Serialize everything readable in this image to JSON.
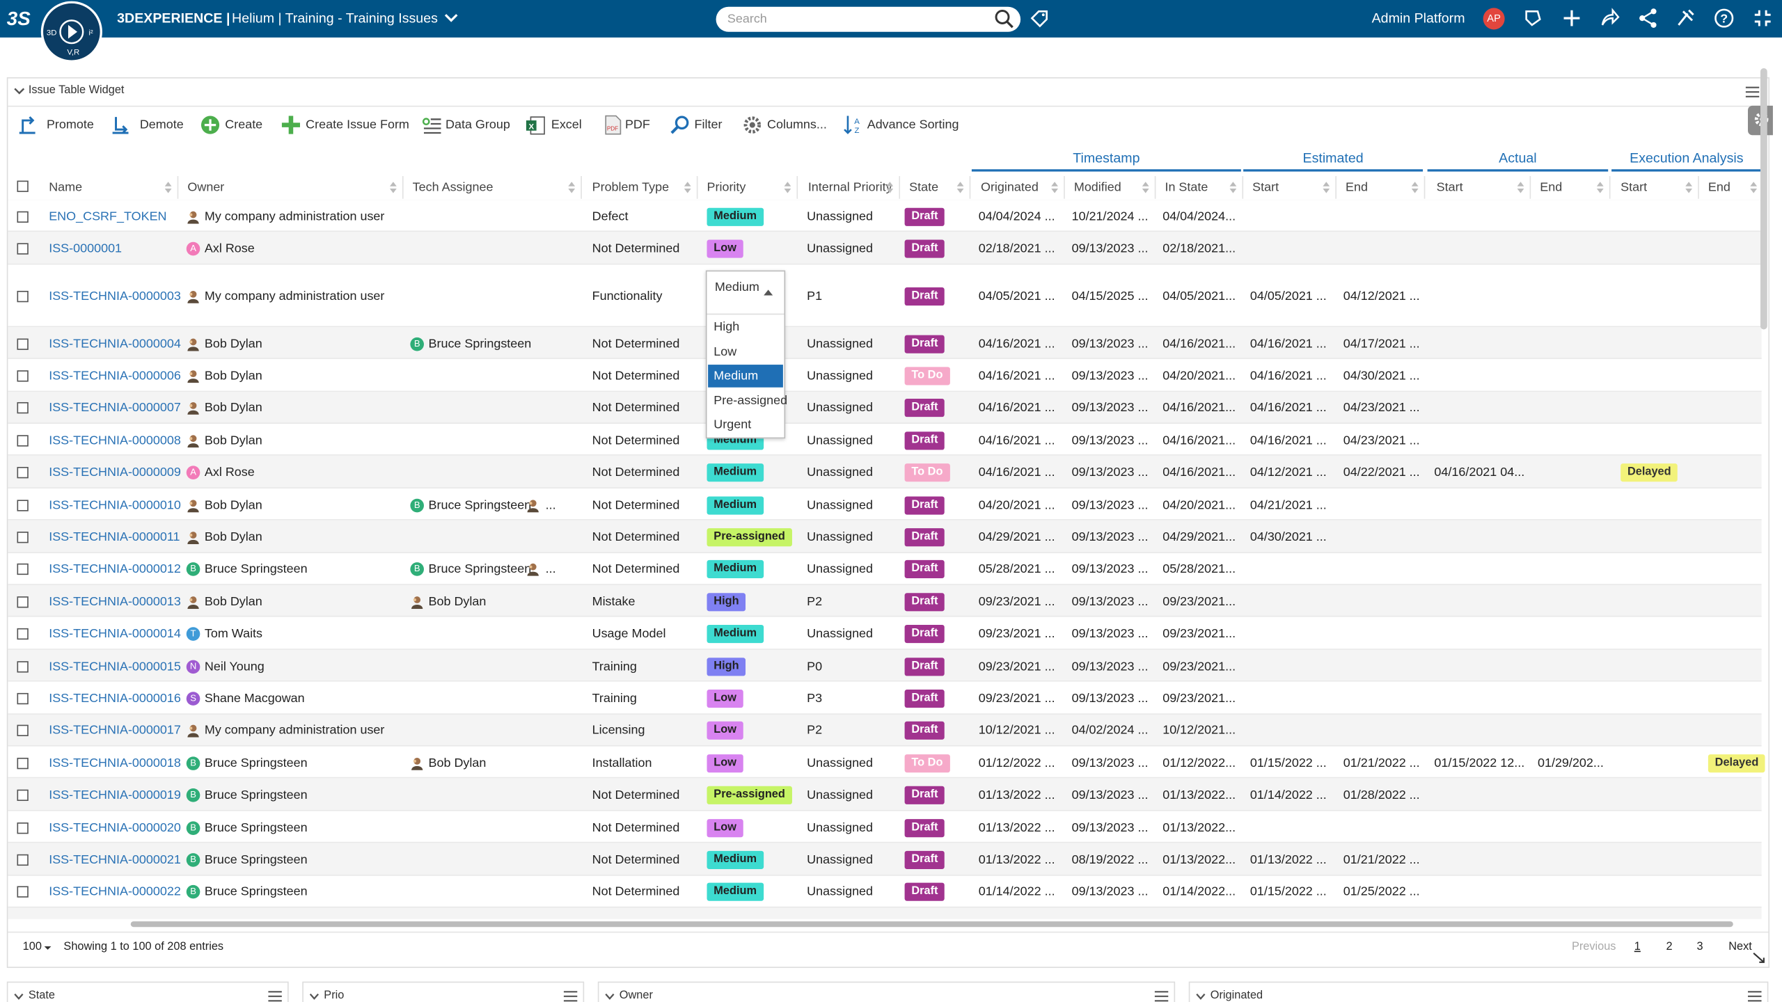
{
  "header": {
    "brand": "3DEXPERIENCE |",
    "breadcrumb": "Helium | Training - Training Issues",
    "search": "Search",
    "user": "Admin Platform",
    "avatar": "AP"
  },
  "widget": {
    "title": "Issue Table Widget",
    "toolbar": [
      "Promote",
      "Demote",
      "Create",
      "Create Issue Form",
      "Data Group",
      "Excel",
      "PDF",
      "Filter",
      "Columns...",
      "Advance Sorting"
    ],
    "column_groups": [
      "Timestamp",
      "Estimated",
      "Actual",
      "Execution Analysis"
    ],
    "columns": [
      "Name",
      "Owner",
      "Tech Assignee",
      "Problem Type",
      "Priority",
      "Internal Priority",
      "State",
      "Originated",
      "Modified",
      "In State",
      "Start",
      "End",
      "Start",
      "End",
      "Start",
      "End"
    ],
    "rows": [
      {
        "name": "ENO_CSRF_TOKEN",
        "owner": {
          "initial": null,
          "name": "My company administration user"
        },
        "tech": null,
        "problem": "Defect",
        "priority": "Medium",
        "internal": "Unassigned",
        "state": "Draft",
        "dates": [
          "04/04/2024 ...",
          "10/21/2024 ...",
          "04/04/2024...",
          null,
          null,
          null,
          null,
          null,
          null
        ]
      },
      {
        "name": "ISS-0000001",
        "owner": {
          "initial": "A",
          "name": "Axl Rose"
        },
        "tech": null,
        "problem": "Not Determined",
        "priority": "Low",
        "internal": "Unassigned",
        "state": "Draft",
        "dates": [
          "02/18/2021 ...",
          "09/13/2023 ...",
          "02/18/2021...",
          null,
          null,
          null,
          null,
          null,
          null
        ]
      },
      {
        "name": "ISS-TECHNIA-0000003",
        "owner": {
          "initial": null,
          "name": "My company administration user"
        },
        "tech": null,
        "problem": "Functionality",
        "priority": null,
        "internal": "P1",
        "state": "Draft",
        "dates": [
          "04/05/2021 ...",
          "04/15/2025 ...",
          "04/05/2021...",
          "04/05/2021 ...",
          "04/12/2021 ...",
          null,
          null,
          null,
          null
        ]
      },
      {
        "name": "ISS-TECHNIA-0000004",
        "owner": {
          "initial": null,
          "name": "Bob Dylan"
        },
        "tech": {
          "initial": "B",
          "name": "Bruce Springsteen",
          "more": null
        },
        "problem": "Not Determined",
        "priority": null,
        "internal": "Unassigned",
        "state": "Draft",
        "dates": [
          "04/16/2021 ...",
          "09/13/2023 ...",
          "04/16/2021...",
          "04/16/2021 ...",
          "04/17/2021 ...",
          null,
          null,
          null,
          null
        ]
      },
      {
        "name": "ISS-TECHNIA-0000006",
        "owner": {
          "initial": null,
          "name": "Bob Dylan"
        },
        "tech": null,
        "problem": "Not Determined",
        "priority": null,
        "internal": "Unassigned",
        "state": "To Do",
        "dates": [
          "04/16/2021 ...",
          "09/13/2023 ...",
          "04/20/2021...",
          "04/16/2021 ...",
          "04/30/2021 ...",
          null,
          null,
          null,
          null
        ]
      },
      {
        "name": "ISS-TECHNIA-0000007",
        "owner": {
          "initial": null,
          "name": "Bob Dylan"
        },
        "tech": null,
        "problem": "Not Determined",
        "priority": null,
        "internal": "Unassigned",
        "state": "Draft",
        "dates": [
          "04/16/2021 ...",
          "09/13/2023 ...",
          "04/16/2021...",
          "04/16/2021 ...",
          "04/23/2021 ...",
          null,
          null,
          null,
          null
        ]
      },
      {
        "name": "ISS-TECHNIA-0000008",
        "owner": {
          "initial": null,
          "name": "Bob Dylan"
        },
        "tech": null,
        "problem": "Not Determined",
        "priority": "Medium",
        "internal": "Unassigned",
        "state": "Draft",
        "dates": [
          "04/16/2021 ...",
          "09/13/2023 ...",
          "04/16/2021...",
          "04/16/2021 ...",
          "04/23/2021 ...",
          null,
          null,
          null,
          null
        ]
      },
      {
        "name": "ISS-TECHNIA-0000009",
        "owner": {
          "initial": "A",
          "name": "Axl Rose"
        },
        "tech": null,
        "problem": "Not Determined",
        "priority": "Medium",
        "internal": "Unassigned",
        "state": "To Do",
        "dates": [
          "04/16/2021 ...",
          "09/13/2023 ...",
          "04/16/2021...",
          "04/12/2021 ...",
          "04/22/2021 ...",
          "04/16/2021 04...",
          null,
          "Delayed",
          null
        ]
      },
      {
        "name": "ISS-TECHNIA-0000010",
        "owner": {
          "initial": null,
          "name": "Bob Dylan"
        },
        "tech": {
          "initial": "B",
          "name": "Bruce Springsteen",
          "more": "..."
        },
        "problem": "Not Determined",
        "priority": "Medium",
        "internal": "Unassigned",
        "state": "Draft",
        "dates": [
          "04/20/2021 ...",
          "09/13/2023 ...",
          "04/20/2021...",
          "04/21/2021 ...",
          null,
          null,
          null,
          null,
          null
        ]
      },
      {
        "name": "ISS-TECHNIA-0000011",
        "owner": {
          "initial": null,
          "name": "Bob Dylan"
        },
        "tech": null,
        "problem": "Not Determined",
        "priority": "Pre-assigned",
        "internal": "Unassigned",
        "state": "Draft",
        "dates": [
          "04/29/2021 ...",
          "09/13/2023 ...",
          "04/29/2021...",
          "04/30/2021 ...",
          null,
          null,
          null,
          null,
          null
        ]
      },
      {
        "name": "ISS-TECHNIA-0000012",
        "owner": {
          "initial": "B",
          "name": "Bruce Springsteen"
        },
        "tech": {
          "initial": "B",
          "name": "Bruce Springsteen",
          "more": "..."
        },
        "problem": "Not Determined",
        "priority": "Medium",
        "internal": "Unassigned",
        "state": "Draft",
        "dates": [
          "05/28/2021 ...",
          "09/13/2023 ...",
          "05/28/2021...",
          null,
          null,
          null,
          null,
          null,
          null
        ]
      },
      {
        "name": "ISS-TECHNIA-0000013",
        "owner": {
          "initial": null,
          "name": "Bob Dylan"
        },
        "tech": {
          "initial": null,
          "name": "Bob Dylan",
          "more": null
        },
        "problem": "Mistake",
        "priority": "High",
        "internal": "P2",
        "state": "Draft",
        "dates": [
          "09/23/2021 ...",
          "09/13/2023 ...",
          "09/23/2021...",
          null,
          null,
          null,
          null,
          null,
          null
        ]
      },
      {
        "name": "ISS-TECHNIA-0000014",
        "owner": {
          "initial": "T",
          "name": "Tom Waits"
        },
        "tech": null,
        "problem": "Usage Model",
        "priority": "Medium",
        "internal": "Unassigned",
        "state": "Draft",
        "dates": [
          "09/23/2021 ...",
          "09/13/2023 ...",
          "09/23/2021...",
          null,
          null,
          null,
          null,
          null,
          null
        ]
      },
      {
        "name": "ISS-TECHNIA-0000015",
        "owner": {
          "initial": "N",
          "name": "Neil Young"
        },
        "tech": null,
        "problem": "Training",
        "priority": "High",
        "internal": "P0",
        "state": "Draft",
        "dates": [
          "09/23/2021 ...",
          "09/13/2023 ...",
          "09/23/2021...",
          null,
          null,
          null,
          null,
          null,
          null
        ]
      },
      {
        "name": "ISS-TECHNIA-0000016",
        "owner": {
          "initial": "S",
          "name": "Shane Macgowan"
        },
        "tech": null,
        "problem": "Training",
        "priority": "Low",
        "internal": "P3",
        "state": "Draft",
        "dates": [
          "09/23/2021 ...",
          "09/13/2023 ...",
          "09/23/2021...",
          null,
          null,
          null,
          null,
          null,
          null
        ]
      },
      {
        "name": "ISS-TECHNIA-0000017",
        "owner": {
          "initial": null,
          "name": "My company administration user"
        },
        "tech": null,
        "problem": "Licensing",
        "priority": "Low",
        "internal": "P2",
        "state": "Draft",
        "dates": [
          "10/12/2021 ...",
          "04/02/2024 ...",
          "10/12/2021...",
          null,
          null,
          null,
          null,
          null,
          null
        ]
      },
      {
        "name": "ISS-TECHNIA-0000018",
        "owner": {
          "initial": "B",
          "name": "Bruce Springsteen"
        },
        "tech": {
          "initial": null,
          "name": "Bob Dylan",
          "more": null
        },
        "problem": "Installation",
        "priority": "Low",
        "internal": "Unassigned",
        "state": "To Do",
        "dates": [
          "01/12/2022 ...",
          "09/13/2023 ...",
          "01/12/2022...",
          "01/15/2022 ...",
          "01/21/2022 ...",
          "01/15/2022 12...",
          "01/29/202...",
          null,
          "Delayed"
        ]
      },
      {
        "name": "ISS-TECHNIA-0000019",
        "owner": {
          "initial": "B",
          "name": "Bruce Springsteen"
        },
        "tech": null,
        "problem": "Not Determined",
        "priority": "Pre-assigned",
        "internal": "Unassigned",
        "state": "Draft",
        "dates": [
          "01/13/2022 ...",
          "09/13/2023 ...",
          "01/13/2022...",
          "01/14/2022 ...",
          "01/28/2022 ...",
          null,
          null,
          null,
          null
        ]
      },
      {
        "name": "ISS-TECHNIA-0000020",
        "owner": {
          "initial": "B",
          "name": "Bruce Springsteen"
        },
        "tech": null,
        "problem": "Not Determined",
        "priority": "Low",
        "internal": "Unassigned",
        "state": "Draft",
        "dates": [
          "01/13/2022 ...",
          "09/13/2023 ...",
          "01/13/2022...",
          null,
          null,
          null,
          null,
          null,
          null
        ]
      },
      {
        "name": "ISS-TECHNIA-0000021",
        "owner": {
          "initial": "B",
          "name": "Bruce Springsteen"
        },
        "tech": null,
        "problem": "Not Determined",
        "priority": "Medium",
        "internal": "Unassigned",
        "state": "Draft",
        "dates": [
          "01/13/2022 ...",
          "08/19/2022 ...",
          "01/13/2022...",
          "01/13/2022 ...",
          "01/21/2022 ...",
          null,
          null,
          null,
          null
        ]
      },
      {
        "name": "ISS-TECHNIA-0000022",
        "owner": {
          "initial": "B",
          "name": "Bruce Springsteen"
        },
        "tech": null,
        "problem": "Not Determined",
        "priority": "Medium",
        "internal": "Unassigned",
        "state": "Draft",
        "dates": [
          "01/14/2022 ...",
          "09/13/2023 ...",
          "01/14/2022...",
          "01/15/2022 ...",
          "01/25/2022 ...",
          null,
          null,
          null,
          null
        ]
      }
    ],
    "priority_dropdown": {
      "row": 2,
      "selected": "Medium",
      "options": [
        "High",
        "Low",
        "Medium",
        "Pre-assigned",
        "Urgent"
      ]
    },
    "footer": {
      "page_size": "100",
      "info": "Showing 1 to 100 of 208 entries",
      "previous": "Previous",
      "pages": [
        "1",
        "2",
        "3"
      ],
      "next": "Next"
    }
  },
  "panels": [
    "State",
    "Prio",
    "Owner",
    "Originated"
  ]
}
